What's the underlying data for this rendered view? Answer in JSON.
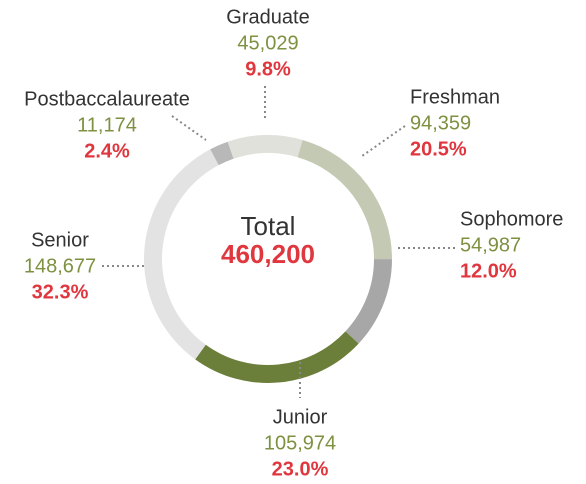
{
  "chart_data": {
    "type": "pie",
    "donut": true,
    "categories": [
      "Graduate",
      "Freshman",
      "Sophomore",
      "Junior",
      "Senior",
      "Postbaccalaureate"
    ],
    "values": [
      45029,
      94359,
      54987,
      105974,
      148677,
      11174
    ],
    "value_labels": [
      "45,029",
      "94,359",
      "54,987",
      "105,974",
      "148,677",
      "11,174"
    ],
    "percent_labels": [
      "9.8%",
      "20.5%",
      "12.0%",
      "23.0%",
      "32.3%",
      "2.4%"
    ],
    "colors": [
      "#dfe1da",
      "#c4c9b4",
      "#a7a7a7",
      "#6b7f3a",
      "#e3e3e3",
      "#b8b8b8"
    ],
    "center_title": "Total",
    "center_value": "460,200"
  }
}
